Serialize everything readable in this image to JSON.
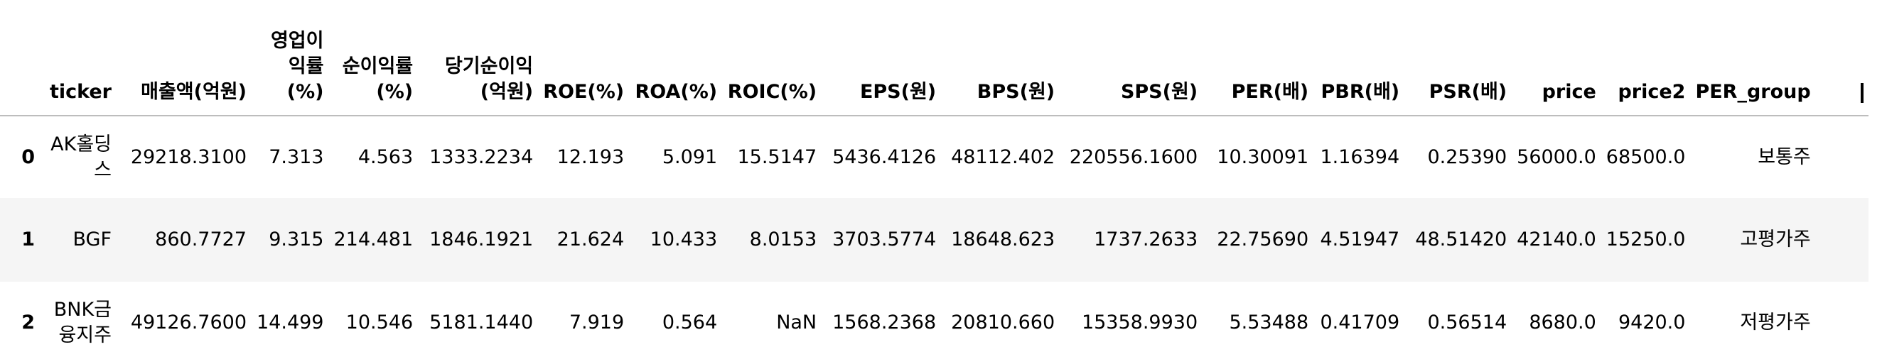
{
  "table": {
    "headers": [
      "ticker",
      "매출액(억원)",
      "영업이익률(%)",
      "순이익률(%)",
      "당기순이익(억원)",
      "ROE(%)",
      "ROA(%)",
      "ROIC(%)",
      "EPS(원)",
      "BPS(원)",
      "SPS(원)",
      "PER(배)",
      "PBR(배)",
      "PSR(배)",
      "price",
      "price2",
      "PER_group"
    ],
    "rows": [
      {
        "index": "0",
        "cells": [
          "AK홀딩스",
          "29218.3100",
          "7.313",
          "4.563",
          "1333.2234",
          "12.193",
          "5.091",
          "15.5147",
          "5436.4126",
          "48112.402",
          "220556.1600",
          "10.30091",
          "1.16394",
          "0.25390",
          "56000.0",
          "68500.0",
          "보통주"
        ]
      },
      {
        "index": "1",
        "cells": [
          "BGF",
          "860.7727",
          "9.315",
          "214.481",
          "1846.1921",
          "21.624",
          "10.433",
          "8.0153",
          "3703.5774",
          "18648.623",
          "1737.2633",
          "22.75690",
          "4.51947",
          "48.51420",
          "42140.0",
          "15250.0",
          "고평가주"
        ]
      },
      {
        "index": "2",
        "cells": [
          "BNK금융지주",
          "49126.7600",
          "14.499",
          "10.546",
          "5181.1440",
          "7.919",
          "0.564",
          "NaN",
          "1568.2368",
          "20810.660",
          "15358.9930",
          "5.53488",
          "0.41709",
          "0.56514",
          "8680.0",
          "9420.0",
          "저평가주"
        ]
      }
    ]
  }
}
